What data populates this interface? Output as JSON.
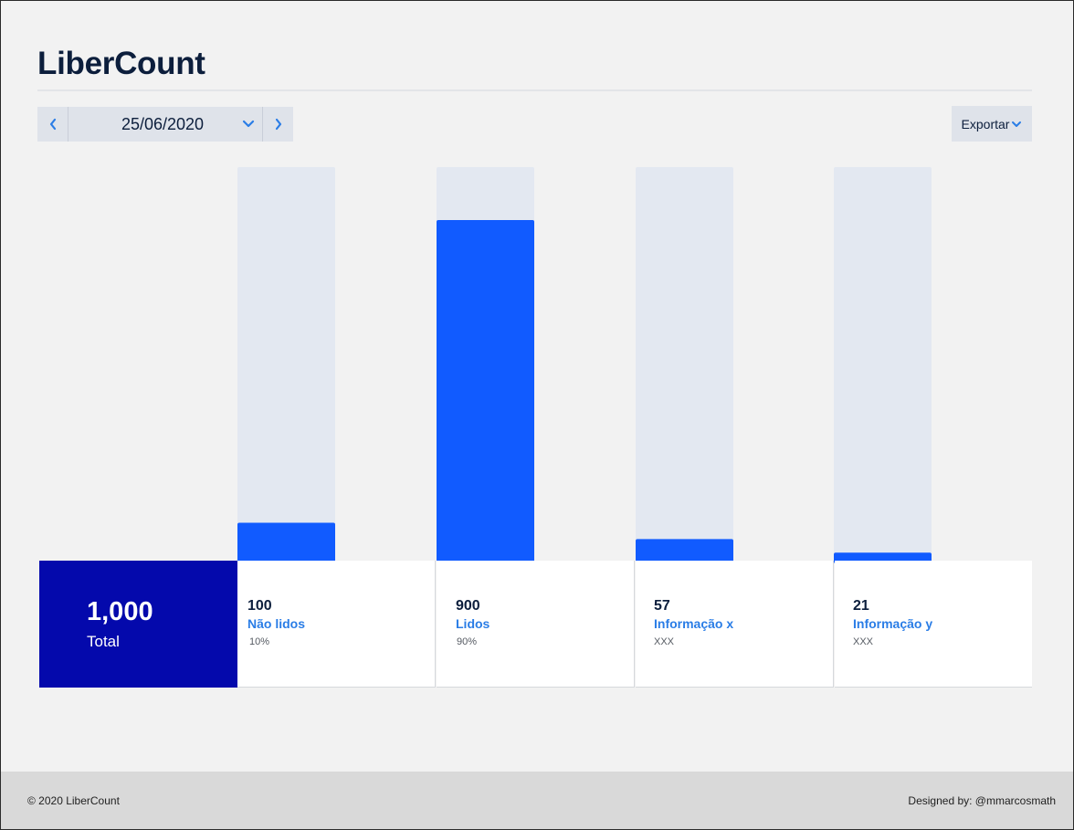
{
  "app": {
    "title": "LiberCount"
  },
  "date_nav": {
    "date": "25/06/2020"
  },
  "toolbar": {
    "export_label": "Exportar"
  },
  "total": {
    "value": "1,000",
    "label": "Total"
  },
  "chart_data": {
    "type": "bar",
    "categories": [
      "Não lidos",
      "Lidos",
      "Informação x",
      "Informação y"
    ],
    "values": [
      100,
      900,
      57,
      21
    ],
    "ylim": [
      0,
      1040
    ],
    "title": "",
    "xlabel": "",
    "ylabel": "",
    "grid": false,
    "bar_color": "#115bff",
    "track_color": "#e3e8f1"
  },
  "stats": [
    {
      "value": "100",
      "label": "Não lidos",
      "sub": "10%"
    },
    {
      "value": "900",
      "label": "Lidos",
      "sub": "90%"
    },
    {
      "value": "57",
      "label": "Informação x",
      "sub": "XXX"
    },
    {
      "value": "21",
      "label": "Informação y",
      "sub": "XXX"
    }
  ],
  "footer": {
    "copyright": "© 2020  LiberCount",
    "credit": "Designed by: @mmarcosmath"
  },
  "colors": {
    "accent": "#115bff",
    "total_bg": "#0409ac",
    "link": "#2a7de6"
  }
}
